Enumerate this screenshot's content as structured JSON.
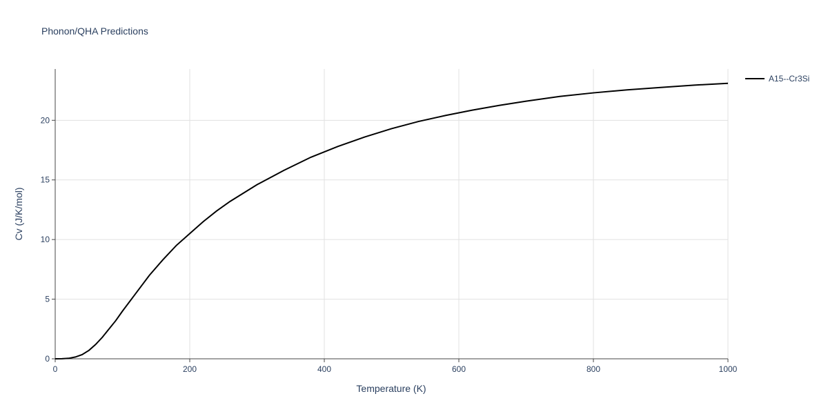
{
  "chart_data": {
    "type": "line",
    "title": "Phonon/QHA Predictions",
    "x_label": "Temperature (K)",
    "y_label": "Cv (J/K/mol)",
    "x": [
      0,
      10,
      20,
      30,
      40,
      50,
      60,
      70,
      80,
      90,
      100,
      120,
      140,
      160,
      180,
      200,
      220,
      240,
      260,
      280,
      300,
      340,
      380,
      420,
      460,
      500,
      540,
      580,
      620,
      660,
      700,
      750,
      800,
      850,
      900,
      950,
      1000
    ],
    "series": [
      {
        "name": "A15--Cr3Si",
        "color": "#000000",
        "values": [
          0,
          0.01,
          0.04,
          0.15,
          0.35,
          0.7,
          1.2,
          1.8,
          2.5,
          3.2,
          4.0,
          5.5,
          7.0,
          8.3,
          9.5,
          10.5,
          11.5,
          12.4,
          13.2,
          13.9,
          14.6,
          15.8,
          16.9,
          17.8,
          18.6,
          19.3,
          19.9,
          20.4,
          20.85,
          21.25,
          21.6,
          22.0,
          22.3,
          22.55,
          22.75,
          22.95,
          23.1
        ]
      }
    ],
    "xlim": [
      0,
      1000
    ],
    "xticks": [
      0,
      200,
      400,
      600,
      800,
      1000
    ],
    "ylim": [
      0,
      24.3
    ],
    "yticks": [
      0,
      5,
      10,
      15,
      20
    ],
    "grid": true,
    "legend": "right"
  }
}
